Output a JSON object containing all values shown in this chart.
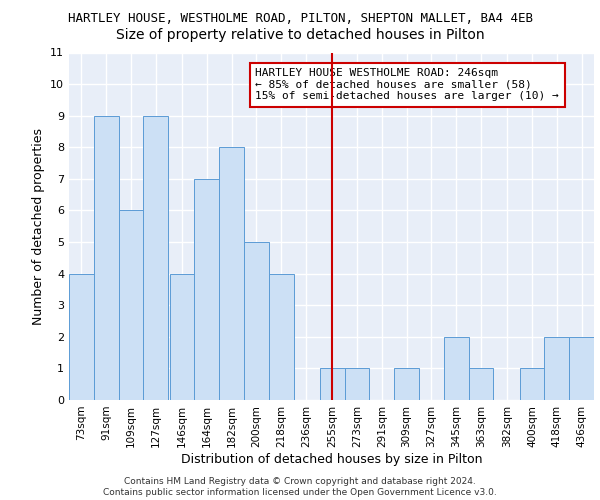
{
  "title1": "HARTLEY HOUSE, WESTHOLME ROAD, PILTON, SHEPTON MALLET, BA4 4EB",
  "title2": "Size of property relative to detached houses in Pilton",
  "xlabel": "Distribution of detached houses by size in Pilton",
  "ylabel": "Number of detached properties",
  "footer1": "Contains HM Land Registry data © Crown copyright and database right 2024.",
  "footer2": "Contains public sector information licensed under the Open Government Licence v3.0.",
  "annotation_line1": "HARTLEY HOUSE WESTHOLME ROAD: 246sqm",
  "annotation_line2": "← 85% of detached houses are smaller (58)",
  "annotation_line3": "15% of semi-detached houses are larger (10) →",
  "bar_color": "#cce0f5",
  "bar_edge_color": "#5b9bd5",
  "ref_line_color": "#cc0000",
  "ref_line_x": 255,
  "categories": [
    73,
    91,
    109,
    127,
    146,
    164,
    182,
    200,
    218,
    236,
    255,
    273,
    291,
    309,
    327,
    345,
    363,
    382,
    400,
    418,
    436
  ],
  "values": [
    4,
    9,
    6,
    9,
    4,
    7,
    8,
    5,
    4,
    0,
    1,
    1,
    0,
    1,
    0,
    2,
    1,
    0,
    1,
    2,
    2
  ],
  "ylim": [
    0,
    11
  ],
  "yticks": [
    0,
    1,
    2,
    3,
    4,
    5,
    6,
    7,
    8,
    9,
    10,
    11
  ],
  "bin_width": 18,
  "background_color": "#e8eef8",
  "grid_color": "#ffffff",
  "title1_fontsize": 9,
  "title2_fontsize": 10,
  "axis_fontsize": 8,
  "label_fontsize": 9
}
